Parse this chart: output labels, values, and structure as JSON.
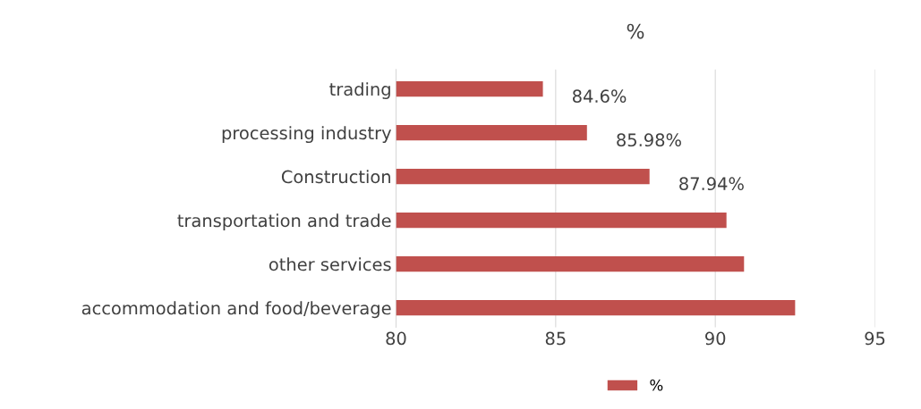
{
  "chart_data": {
    "type": "bar",
    "orientation": "horizontal",
    "title": "%",
    "categories": [
      "trading",
      "processing industry",
      "Construction",
      "transportation and trade",
      "other services",
      "accommodation and food/beverage"
    ],
    "series": [
      {
        "name": "%",
        "color": "#c0504d",
        "values": [
          84.6,
          85.98,
          87.94,
          90.35,
          90.9,
          92.5
        ],
        "value_labels": [
          "84.6%",
          "85.98%",
          "87.94%",
          null,
          null,
          null
        ]
      }
    ],
    "xlim": [
      80,
      95
    ],
    "xticks": [
      80,
      85,
      90,
      95
    ],
    "grid": "x",
    "legend": "bottom"
  }
}
